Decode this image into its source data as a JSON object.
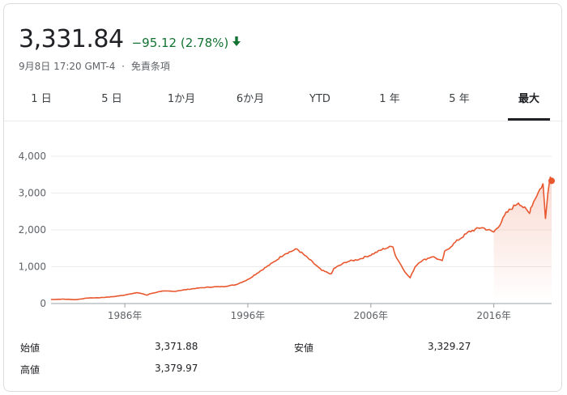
{
  "quote": {
    "price": "3,331.84",
    "change": "−95.12 (2.78%)",
    "change_color": "#137333",
    "direction_icon": "arrow-down-icon",
    "timestamp": "9月8日 17:20 GMT-4",
    "separator": "·",
    "disclaimer": "免責条項"
  },
  "tabs": [
    {
      "label": "1 日",
      "active": false
    },
    {
      "label": "5 日",
      "active": false
    },
    {
      "label": "1か月",
      "active": false
    },
    {
      "label": "6か月",
      "active": false
    },
    {
      "label": "YTD",
      "active": false
    },
    {
      "label": "1 年",
      "active": false
    },
    {
      "label": "5 年",
      "active": false
    },
    {
      "label": "最大",
      "active": true
    }
  ],
  "chart_data": {
    "type": "line",
    "x_ticks": [
      "1986年",
      "1996年",
      "2006年",
      "2016年"
    ],
    "y_ticks": [
      "0",
      "1,000",
      "2,000",
      "3,000",
      "4,000"
    ],
    "ylim": [
      0,
      4000
    ],
    "xlim": [
      1980,
      2020.7
    ],
    "line_color": "#e8572e",
    "grid": true,
    "series": [
      {
        "points": [
          [
            1980,
            110
          ],
          [
            1981,
            120
          ],
          [
            1982,
            105
          ],
          [
            1983,
            150
          ],
          [
            1984,
            160
          ],
          [
            1985,
            185
          ],
          [
            1986,
            230
          ],
          [
            1987,
            300
          ],
          [
            1987.8,
            230
          ],
          [
            1988,
            260
          ],
          [
            1989,
            340
          ],
          [
            1990,
            330
          ],
          [
            1991,
            380
          ],
          [
            1992,
            420
          ],
          [
            1993,
            450
          ],
          [
            1994,
            460
          ],
          [
            1995,
            510
          ],
          [
            1996,
            650
          ],
          [
            1997,
            880
          ],
          [
            1998,
            1100
          ],
          [
            1999,
            1350
          ],
          [
            2000,
            1480
          ],
          [
            2001,
            1200
          ],
          [
            2002,
            900
          ],
          [
            2002.8,
            800
          ],
          [
            2003,
            950
          ],
          [
            2004,
            1130
          ],
          [
            2005,
            1200
          ],
          [
            2006,
            1320
          ],
          [
            2007,
            1480
          ],
          [
            2007.8,
            1560
          ],
          [
            2008,
            1300
          ],
          [
            2008.9,
            800
          ],
          [
            2009.2,
            700
          ],
          [
            2009.6,
            1000
          ],
          [
            2010,
            1140
          ],
          [
            2011,
            1280
          ],
          [
            2011.8,
            1150
          ],
          [
            2012,
            1400
          ],
          [
            2013,
            1700
          ],
          [
            2014,
            1950
          ],
          [
            2015,
            2070
          ],
          [
            2016,
            1940
          ],
          [
            2016.5,
            2150
          ],
          [
            2017,
            2450
          ],
          [
            2018,
            2750
          ],
          [
            2018.9,
            2450
          ],
          [
            2019,
            2600
          ],
          [
            2019.5,
            2950
          ],
          [
            2020,
            3250
          ],
          [
            2020.2,
            2300
          ],
          [
            2020.4,
            3050
          ],
          [
            2020.6,
            3450
          ],
          [
            2020.7,
            3331.84
          ]
        ]
      }
    ]
  },
  "stats": [
    {
      "label": "始値",
      "value": "3,371.88"
    },
    {
      "label": "安値",
      "value": "3,329.27"
    },
    {
      "label": "高値",
      "value": "3,379.97"
    }
  ]
}
